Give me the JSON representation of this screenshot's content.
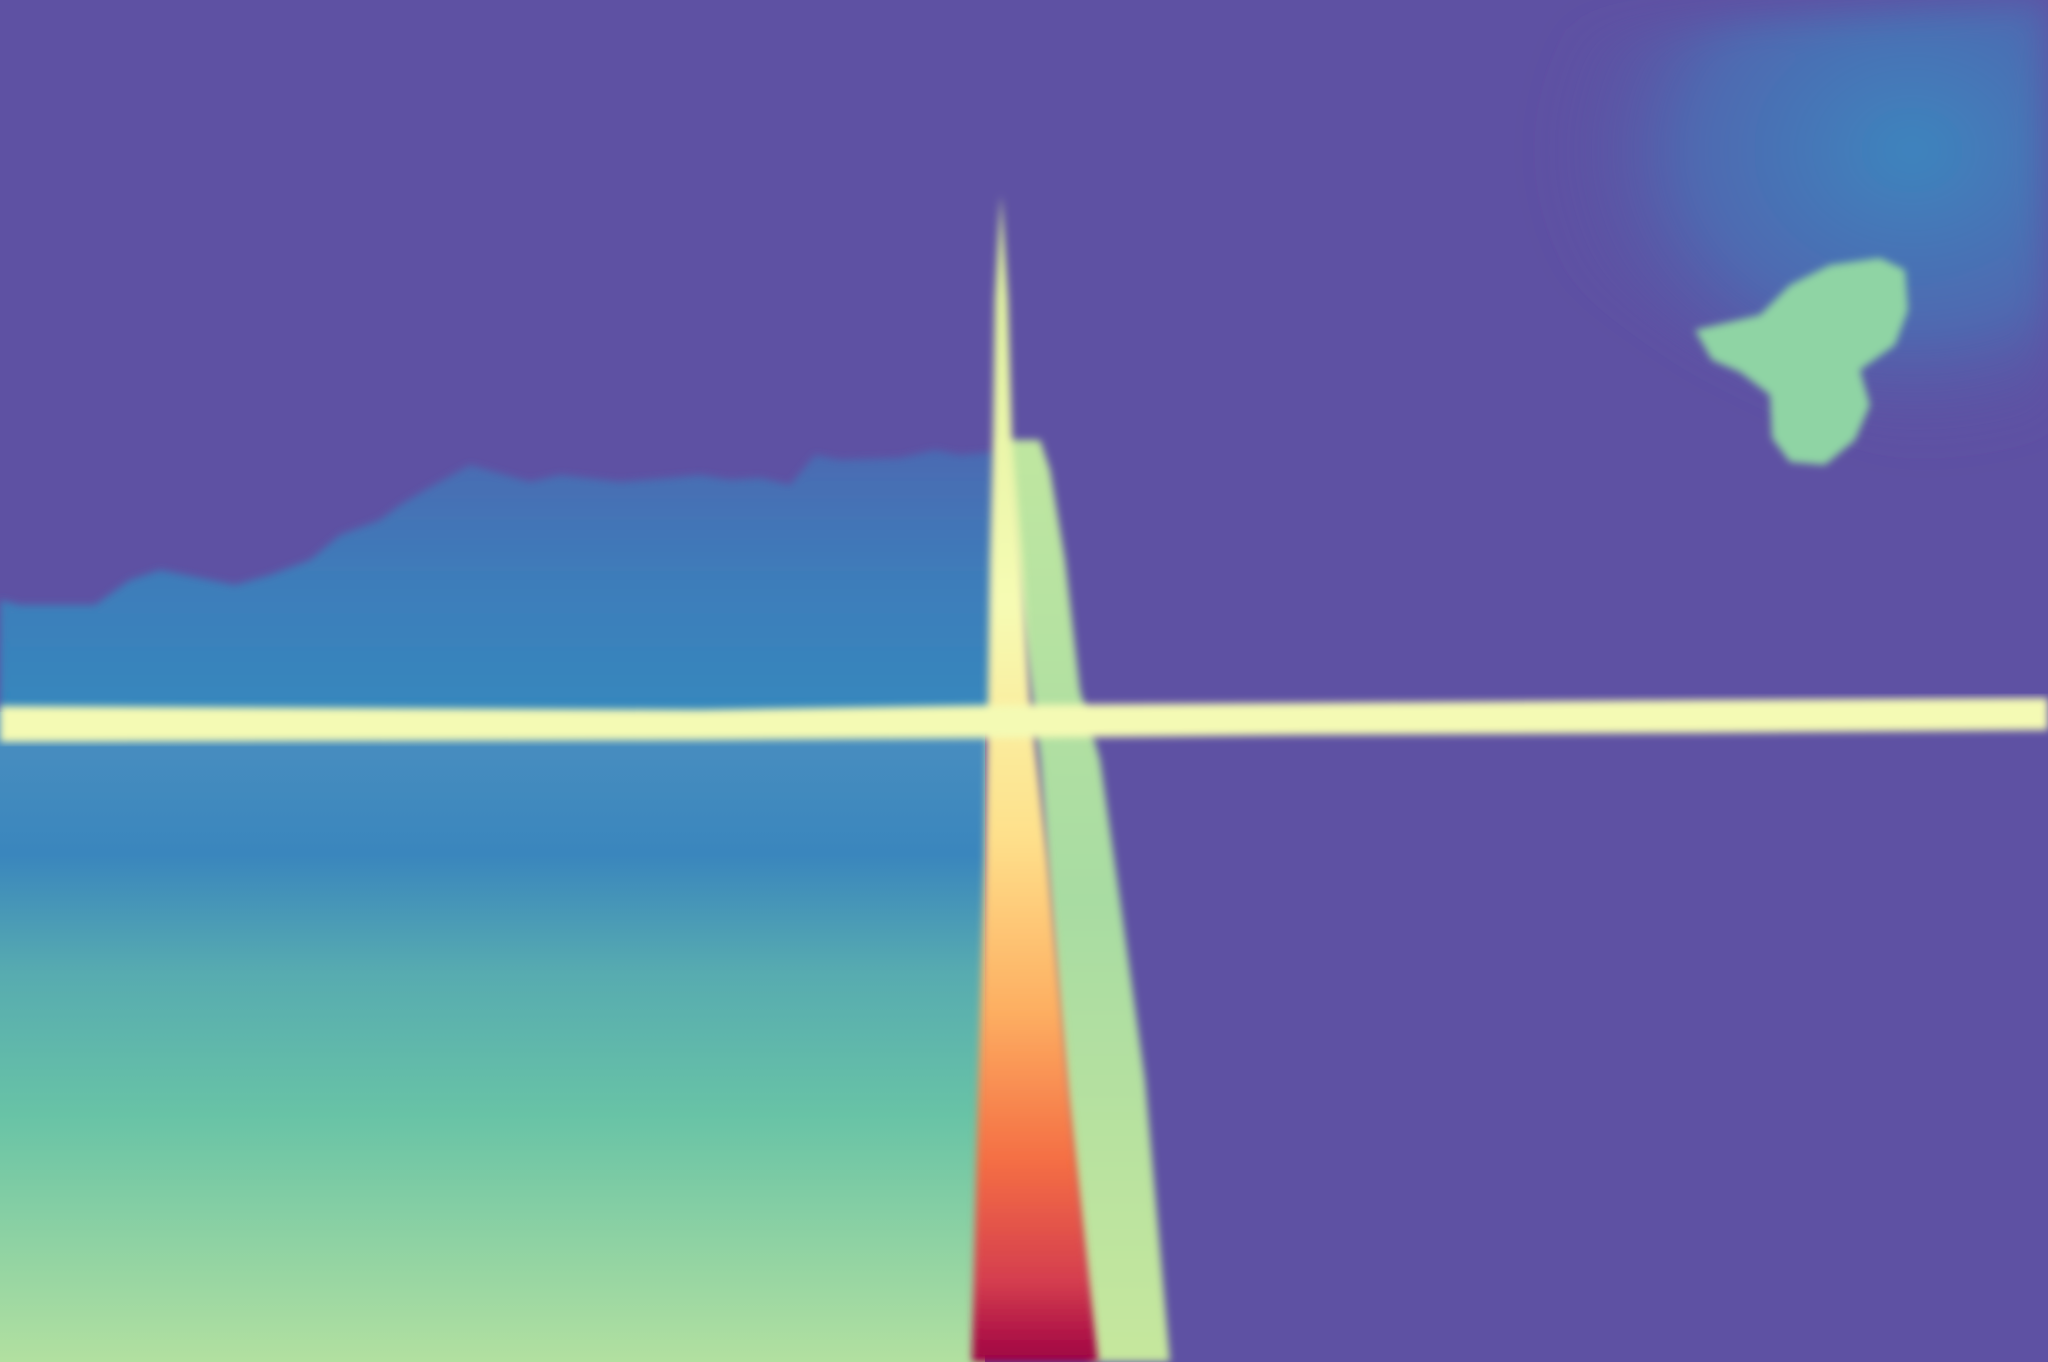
{
  "image": {
    "kind": "colormapped-depth-style rendering",
    "colormap": "spectral",
    "colors": {
      "background": "#5e51a3",
      "deep_blue": "#3f77b8",
      "mid_blue": "#3588bd",
      "teal": "#55a9b0",
      "green": "#68c3a6",
      "light_green": "#aedd9f",
      "pale_yellow": "#f5fbb4",
      "yellow": "#fee08b",
      "orange": "#f46d43",
      "red": "#d53e4f",
      "deep_red": "#9e0142"
    },
    "regions": [
      "background",
      "horizon-band",
      "ground-gradient",
      "vertical-spire",
      "spire-halo",
      "upper-right-glow",
      "floating-blob"
    ]
  }
}
